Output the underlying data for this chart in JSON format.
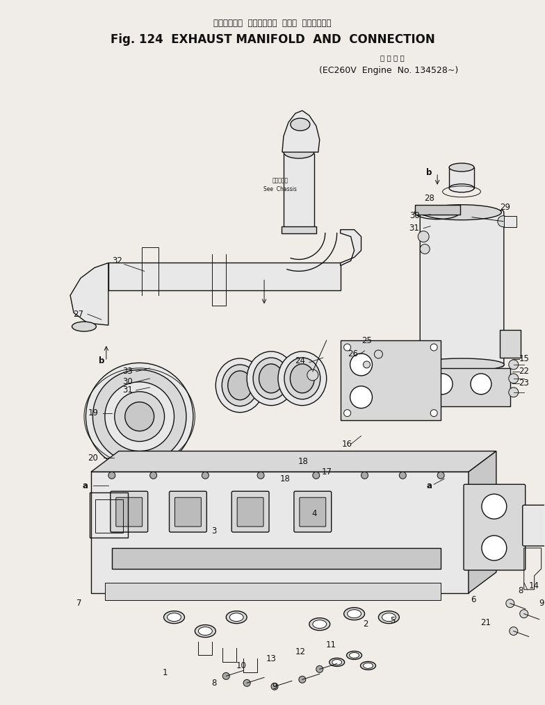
{
  "title_jp": "エキゾースト  マニホールド  および  コネクション",
  "title_en": "Fig. 124  EXHAUST MANIFOLD  AND  CONNECTION",
  "subtitle_jp": "適 用 号 機",
  "subtitle_en": "(EC260V  Engine  No. 134528~)",
  "bg_color": "#f0ede8",
  "fig_width": 7.84,
  "fig_height": 10.15,
  "dpi": 100
}
